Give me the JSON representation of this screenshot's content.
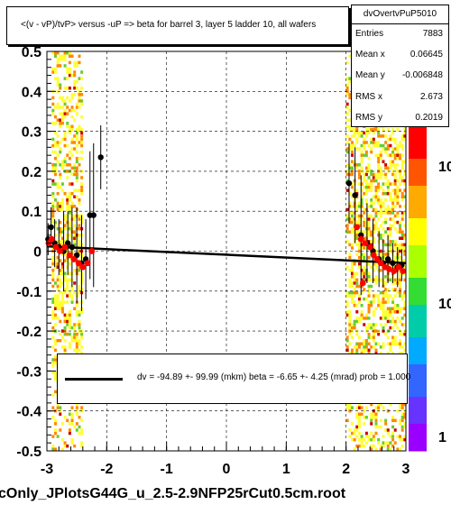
{
  "chart_data": {
    "type": "scatter",
    "title": "<(v - vP)/tvP> versus  -uP => beta for barrel 3, layer 5 ladder 10, all wafers",
    "xlim": [
      -3,
      3
    ],
    "ylim": [
      -0.5,
      0.5
    ],
    "x_ticks": [
      "-3",
      "-2",
      "-1",
      "0",
      "1",
      "2",
      "3"
    ],
    "y_ticks": [
      "-0.5",
      "-0.4",
      "-0.3",
      "-0.2",
      "-0.1",
      "0",
      "0.1",
      "0.2",
      "0.3",
      "0.4",
      "0.5"
    ],
    "z_ticks": [
      "1",
      "10",
      "10"
    ],
    "grid": true,
    "series_profile": {
      "color": "#000000",
      "points": [
        {
          "x": -2.98,
          "y": 0.03,
          "err": 0.04
        },
        {
          "x": -2.93,
          "y": 0.06,
          "err": 0.05
        },
        {
          "x": -2.87,
          "y": 0.02,
          "err": 0.06
        },
        {
          "x": -2.8,
          "y": 0.01,
          "err": 0.07
        },
        {
          "x": -2.72,
          "y": 0.0,
          "err": 0.1
        },
        {
          "x": -2.65,
          "y": 0.02,
          "err": 0.08
        },
        {
          "x": -2.58,
          "y": 0.01,
          "err": 0.1
        },
        {
          "x": -2.5,
          "y": -0.01,
          "err": 0.12
        },
        {
          "x": -2.42,
          "y": -0.03,
          "err": 0.12
        },
        {
          "x": -2.35,
          "y": -0.02,
          "err": 0.1
        },
        {
          "x": -2.28,
          "y": 0.09,
          "err": 0.16
        },
        {
          "x": -2.22,
          "y": 0.09,
          "err": 0.18
        },
        {
          "x": -2.1,
          "y": 0.235,
          "err": 0.08
        },
        {
          "x": 2.05,
          "y": 0.17,
          "err": 0.1
        },
        {
          "x": 2.15,
          "y": 0.14,
          "err": 0.12
        },
        {
          "x": 2.25,
          "y": 0.04,
          "err": 0.15
        },
        {
          "x": 2.35,
          "y": 0.02,
          "err": 0.1
        },
        {
          "x": 2.45,
          "y": 0.0,
          "err": 0.08
        },
        {
          "x": 2.55,
          "y": -0.02,
          "err": 0.07
        },
        {
          "x": 2.62,
          "y": -0.03,
          "err": 0.06
        },
        {
          "x": 2.7,
          "y": -0.02,
          "err": 0.06
        },
        {
          "x": 2.78,
          "y": -0.03,
          "err": 0.05
        },
        {
          "x": 2.86,
          "y": -0.04,
          "err": 0.05
        },
        {
          "x": 2.93,
          "y": -0.035,
          "err": 0.04
        }
      ]
    },
    "series_red": {
      "color": "#ff0000",
      "points": [
        {
          "x": -2.97,
          "y": 0.02
        },
        {
          "x": -2.92,
          "y": 0.03
        },
        {
          "x": -2.85,
          "y": 0.01
        },
        {
          "x": -2.78,
          "y": 0.0
        },
        {
          "x": -2.7,
          "y": 0.01
        },
        {
          "x": -2.62,
          "y": -0.01
        },
        {
          "x": -2.55,
          "y": -0.02
        },
        {
          "x": -2.47,
          "y": -0.03
        },
        {
          "x": -2.4,
          "y": -0.04
        },
        {
          "x": -2.32,
          "y": -0.03
        },
        {
          "x": -2.25,
          "y": 0.0
        },
        {
          "x": 2.18,
          "y": 0.06
        },
        {
          "x": 2.25,
          "y": 0.03
        },
        {
          "x": 2.32,
          "y": 0.02
        },
        {
          "x": 2.4,
          "y": 0.01
        },
        {
          "x": 2.46,
          "y": -0.01
        },
        {
          "x": 2.52,
          "y": -0.02
        },
        {
          "x": 2.58,
          "y": -0.03
        },
        {
          "x": 2.65,
          "y": -0.04
        },
        {
          "x": 2.72,
          "y": -0.045
        },
        {
          "x": 2.8,
          "y": -0.05
        },
        {
          "x": 2.88,
          "y": -0.04
        },
        {
          "x": 2.95,
          "y": -0.05
        },
        {
          "x": 2.28,
          "y": -0.08
        }
      ]
    },
    "fit_line": {
      "x1": -3,
      "y1": 0.012,
      "x2": 3,
      "y2": -0.03
    },
    "stats": {
      "name": "dvOvertvPuP5010",
      "rows": [
        {
          "label": "Entries",
          "value": "7883"
        },
        {
          "label": "Mean x",
          "value": "0.06645"
        },
        {
          "label": "Mean y",
          "value": "-0.006848"
        },
        {
          "label": "RMS x",
          "value": "2.673"
        },
        {
          "label": "RMS y",
          "value": "0.2019"
        }
      ]
    },
    "fit_text": "dv =  -94.89 +- 99.99 (mkm) beta =   -6.65 +-  4.25 (mrad) prob = 1.000"
  },
  "footer_label": "cOnly_JPlotsG44G_u_2.5-2.9NFP25rCut0.5cm.root",
  "colors": {
    "heat_low": "#ffff33",
    "heat_mid": "#ff8800",
    "heat_high": "#cc0000",
    "heat_green": "#66cc33"
  }
}
